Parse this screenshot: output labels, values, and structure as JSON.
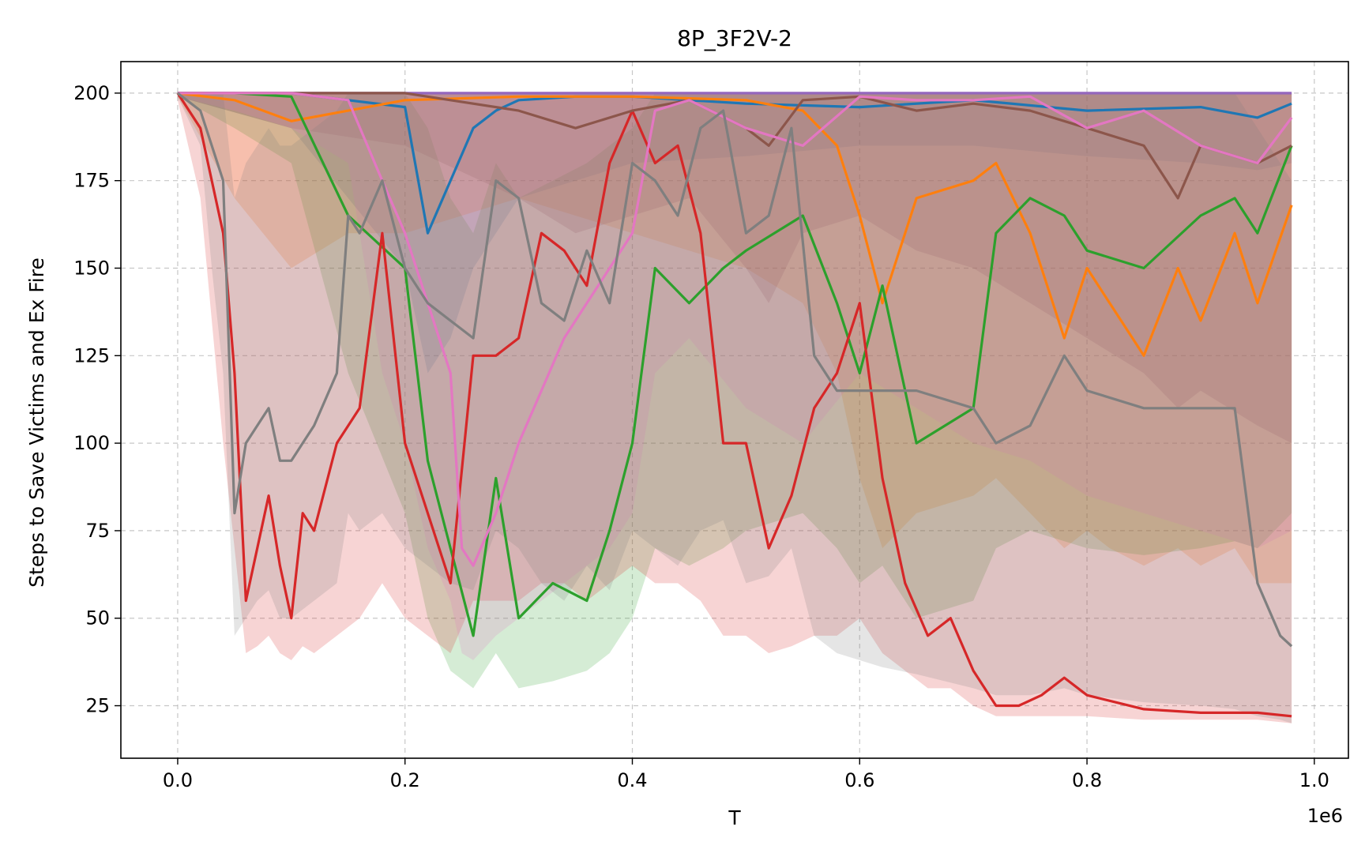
{
  "chart_data": {
    "type": "line",
    "title": "8P_3F2V-2",
    "xlabel": "T",
    "ylabel": "Steps to Save Victims and Ex Fire",
    "x_offset_label": "1e6",
    "xlim": [
      -0.05,
      1.03
    ],
    "ylim": [
      10,
      209
    ],
    "x_ticks": [
      0.0,
      0.2,
      0.4,
      0.6,
      0.8,
      1.0
    ],
    "x_tick_labels": [
      "0.0",
      "0.2",
      "0.4",
      "0.6",
      "0.8",
      "1.0"
    ],
    "y_ticks": [
      25,
      50,
      75,
      100,
      125,
      150,
      175,
      200
    ],
    "y_tick_labels": [
      "25",
      "50",
      "75",
      "100",
      "125",
      "150",
      "175",
      "200"
    ],
    "grid": true,
    "legend": "none",
    "series": [
      {
        "color": "#1f77b4",
        "x": [
          0.0,
          0.1,
          0.15,
          0.2,
          0.22,
          0.24,
          0.26,
          0.28,
          0.3,
          0.35,
          0.4,
          0.5,
          0.6,
          0.7,
          0.8,
          0.9,
          0.95,
          0.98
        ],
        "y": [
          200,
          200,
          198,
          196,
          160,
          175,
          190,
          195,
          198,
          199,
          199,
          197,
          196,
          198,
          195,
          196,
          193,
          197
        ],
        "lower": [
          199,
          190,
          170,
          150,
          120,
          130,
          150,
          160,
          170,
          175,
          180,
          182,
          185,
          185,
          182,
          180,
          178,
          180
        ],
        "upper": [
          200,
          200,
          200,
          200,
          200,
          200,
          200,
          200,
          200,
          200,
          200,
          200,
          200,
          200,
          200,
          200,
          200,
          200
        ]
      },
      {
        "color": "#ff7f0e",
        "x": [
          0.0,
          0.05,
          0.1,
          0.15,
          0.2,
          0.3,
          0.4,
          0.5,
          0.55,
          0.58,
          0.6,
          0.62,
          0.65,
          0.7,
          0.72,
          0.75,
          0.78,
          0.8,
          0.82,
          0.85,
          0.88,
          0.9,
          0.93,
          0.95,
          0.98
        ],
        "y": [
          200,
          198,
          192,
          195,
          198,
          199,
          199,
          198,
          195,
          185,
          165,
          140,
          170,
          175,
          180,
          160,
          130,
          150,
          140,
          125,
          150,
          135,
          160,
          140,
          168
        ],
        "lower": [
          199,
          170,
          150,
          160,
          160,
          170,
          160,
          150,
          140,
          120,
          90,
          70,
          80,
          85,
          90,
          80,
          70,
          75,
          70,
          65,
          70,
          65,
          70,
          60,
          60
        ],
        "upper": [
          200,
          200,
          200,
          200,
          200,
          200,
          200,
          200,
          200,
          200,
          200,
          200,
          200,
          200,
          200,
          200,
          200,
          200,
          200,
          200,
          200,
          200,
          200,
          200,
          200
        ]
      },
      {
        "color": "#2ca02c",
        "x": [
          0.0,
          0.05,
          0.1,
          0.15,
          0.2,
          0.22,
          0.24,
          0.26,
          0.28,
          0.3,
          0.33,
          0.36,
          0.38,
          0.4,
          0.42,
          0.45,
          0.48,
          0.5,
          0.55,
          0.58,
          0.6,
          0.62,
          0.65,
          0.7,
          0.72,
          0.75,
          0.78,
          0.8,
          0.85,
          0.9,
          0.93,
          0.95,
          0.98
        ],
        "y": [
          200,
          200,
          199,
          165,
          150,
          95,
          70,
          45,
          90,
          50,
          60,
          55,
          75,
          100,
          150,
          140,
          150,
          155,
          165,
          140,
          120,
          145,
          100,
          110,
          160,
          170,
          165,
          155,
          150,
          165,
          170,
          160,
          185
        ],
        "lower": [
          199,
          190,
          180,
          120,
          80,
          50,
          35,
          30,
          40,
          30,
          32,
          35,
          40,
          50,
          70,
          65,
          70,
          75,
          80,
          70,
          60,
          65,
          50,
          55,
          70,
          75,
          72,
          70,
          68,
          70,
          72,
          70,
          80
        ],
        "upper": [
          200,
          200,
          200,
          200,
          200,
          190,
          170,
          160,
          180,
          170,
          175,
          180,
          185,
          190,
          200,
          200,
          200,
          200,
          200,
          200,
          200,
          200,
          200,
          200,
          200,
          200,
          200,
          200,
          200,
          200,
          200,
          200,
          200
        ]
      },
      {
        "color": "#d62728",
        "x": [
          0.0,
          0.02,
          0.04,
          0.05,
          0.06,
          0.07,
          0.08,
          0.09,
          0.1,
          0.11,
          0.12,
          0.14,
          0.16,
          0.18,
          0.2,
          0.22,
          0.24,
          0.26,
          0.28,
          0.3,
          0.32,
          0.34,
          0.36,
          0.38,
          0.4,
          0.42,
          0.44,
          0.46,
          0.48,
          0.5,
          0.52,
          0.54,
          0.56,
          0.58,
          0.6,
          0.62,
          0.64,
          0.66,
          0.68,
          0.7,
          0.72,
          0.74,
          0.76,
          0.78,
          0.8,
          0.85,
          0.9,
          0.95,
          0.98
        ],
        "y": [
          200,
          190,
          160,
          120,
          55,
          70,
          85,
          65,
          50,
          80,
          75,
          100,
          110,
          160,
          100,
          80,
          60,
          125,
          125,
          130,
          160,
          155,
          145,
          180,
          195,
          180,
          185,
          160,
          100,
          100,
          70,
          85,
          110,
          120,
          140,
          90,
          60,
          45,
          50,
          35,
          25,
          25,
          28,
          33,
          28,
          24,
          23,
          23,
          22
        ],
        "lower": [
          198,
          170,
          100,
          70,
          40,
          42,
          45,
          40,
          38,
          42,
          40,
          45,
          50,
          60,
          50,
          45,
          40,
          55,
          55,
          55,
          60,
          60,
          55,
          60,
          65,
          60,
          60,
          55,
          45,
          45,
          40,
          42,
          45,
          45,
          50,
          40,
          35,
          30,
          30,
          25,
          22,
          22,
          22,
          22,
          22,
          21,
          21,
          21,
          20
        ],
        "upper": [
          200,
          200,
          200,
          200,
          200,
          200,
          200,
          200,
          200,
          200,
          200,
          200,
          200,
          200,
          200,
          200,
          200,
          200,
          200,
          200,
          200,
          200,
          200,
          200,
          200,
          200,
          200,
          200,
          200,
          200,
          200,
          200,
          200,
          200,
          200,
          200,
          200,
          200,
          200,
          200,
          200,
          200,
          200,
          200,
          200,
          200,
          200,
          200,
          200
        ]
      },
      {
        "color": "#9467bd",
        "x": [
          0.0,
          0.2,
          0.4,
          0.6,
          0.8,
          0.98
        ],
        "y": [
          200,
          200,
          200,
          200,
          200,
          200
        ],
        "lower": [
          199.5,
          199.5,
          199.5,
          199.5,
          199.5,
          199.5
        ],
        "upper": [
          200,
          200,
          200,
          200,
          200,
          200
        ]
      },
      {
        "color": "#8c564b",
        "x": [
          0.0,
          0.1,
          0.2,
          0.3,
          0.35,
          0.4,
          0.45,
          0.5,
          0.52,
          0.55,
          0.6,
          0.65,
          0.7,
          0.75,
          0.8,
          0.85,
          0.88,
          0.9,
          0.95,
          0.98
        ],
        "y": [
          200,
          200,
          200,
          195,
          190,
          195,
          198,
          190,
          185,
          198,
          199,
          195,
          197,
          195,
          190,
          185,
          170,
          185,
          180,
          185
        ],
        "lower": [
          199,
          190,
          185,
          170,
          160,
          165,
          170,
          150,
          140,
          160,
          165,
          155,
          150,
          140,
          130,
          120,
          110,
          115,
          105,
          100
        ],
        "upper": [
          200,
          200,
          200,
          200,
          200,
          200,
          200,
          200,
          200,
          200,
          200,
          200,
          200,
          200,
          200,
          200,
          200,
          200,
          200,
          200
        ]
      },
      {
        "color": "#e377c2",
        "x": [
          0.0,
          0.05,
          0.1,
          0.15,
          0.18,
          0.2,
          0.22,
          0.24,
          0.25,
          0.26,
          0.28,
          0.3,
          0.32,
          0.34,
          0.36,
          0.38,
          0.4,
          0.42,
          0.45,
          0.5,
          0.55,
          0.6,
          0.65,
          0.7,
          0.75,
          0.8,
          0.85,
          0.9,
          0.95,
          0.98
        ],
        "y": [
          200,
          200,
          200,
          198,
          175,
          160,
          140,
          120,
          70,
          65,
          80,
          100,
          115,
          130,
          140,
          150,
          160,
          195,
          198,
          190,
          185,
          199,
          198,
          198,
          199,
          190,
          195,
          185,
          180,
          193
        ],
        "lower": [
          199,
          195,
          190,
          180,
          120,
          100,
          70,
          55,
          40,
          38,
          45,
          50,
          55,
          60,
          65,
          70,
          80,
          120,
          130,
          110,
          100,
          120,
          110,
          100,
          95,
          85,
          80,
          75,
          70,
          75
        ],
        "upper": [
          200,
          200,
          200,
          200,
          200,
          200,
          200,
          200,
          200,
          200,
          200,
          200,
          200,
          200,
          200,
          200,
          200,
          200,
          200,
          200,
          200,
          200,
          200,
          200,
          200,
          200,
          200,
          200,
          200,
          200
        ]
      },
      {
        "color": "#7f7f7f",
        "x": [
          0.0,
          0.02,
          0.03,
          0.04,
          0.05,
          0.06,
          0.07,
          0.08,
          0.09,
          0.1,
          0.12,
          0.14,
          0.15,
          0.16,
          0.18,
          0.2,
          0.22,
          0.24,
          0.26,
          0.28,
          0.3,
          0.32,
          0.34,
          0.36,
          0.38,
          0.4,
          0.42,
          0.44,
          0.46,
          0.48,
          0.5,
          0.52,
          0.54,
          0.56,
          0.58,
          0.6,
          0.62,
          0.65,
          0.7,
          0.72,
          0.75,
          0.78,
          0.8,
          0.85,
          0.9,
          0.93,
          0.95,
          0.97,
          0.98
        ],
        "y": [
          200,
          195,
          185,
          175,
          80,
          100,
          105,
          110,
          95,
          95,
          105,
          120,
          165,
          160,
          175,
          150,
          140,
          135,
          130,
          175,
          170,
          140,
          135,
          155,
          140,
          180,
          175,
          165,
          190,
          195,
          160,
          165,
          190,
          125,
          115,
          115,
          115,
          115,
          110,
          100,
          105,
          125,
          115,
          110,
          110,
          110,
          60,
          45,
          42
        ],
        "lower": [
          199,
          185,
          150,
          120,
          45,
          50,
          55,
          58,
          50,
          50,
          55,
          60,
          80,
          75,
          80,
          70,
          65,
          60,
          58,
          75,
          70,
          60,
          55,
          65,
          58,
          75,
          70,
          65,
          75,
          78,
          60,
          62,
          70,
          45,
          40,
          38,
          36,
          34,
          30,
          28,
          28,
          30,
          28,
          26,
          25,
          24,
          22,
          21,
          20
        ],
        "upper": [
          200,
          200,
          200,
          200,
          170,
          180,
          185,
          190,
          185,
          185,
          190,
          195,
          200,
          200,
          200,
          200,
          200,
          200,
          200,
          200,
          200,
          200,
          200,
          200,
          200,
          200,
          200,
          200,
          200,
          200,
          200,
          200,
          200,
          200,
          200,
          200,
          200,
          200,
          200,
          200,
          200,
          200,
          200,
          200,
          200,
          200,
          190,
          180,
          175
        ]
      }
    ]
  }
}
